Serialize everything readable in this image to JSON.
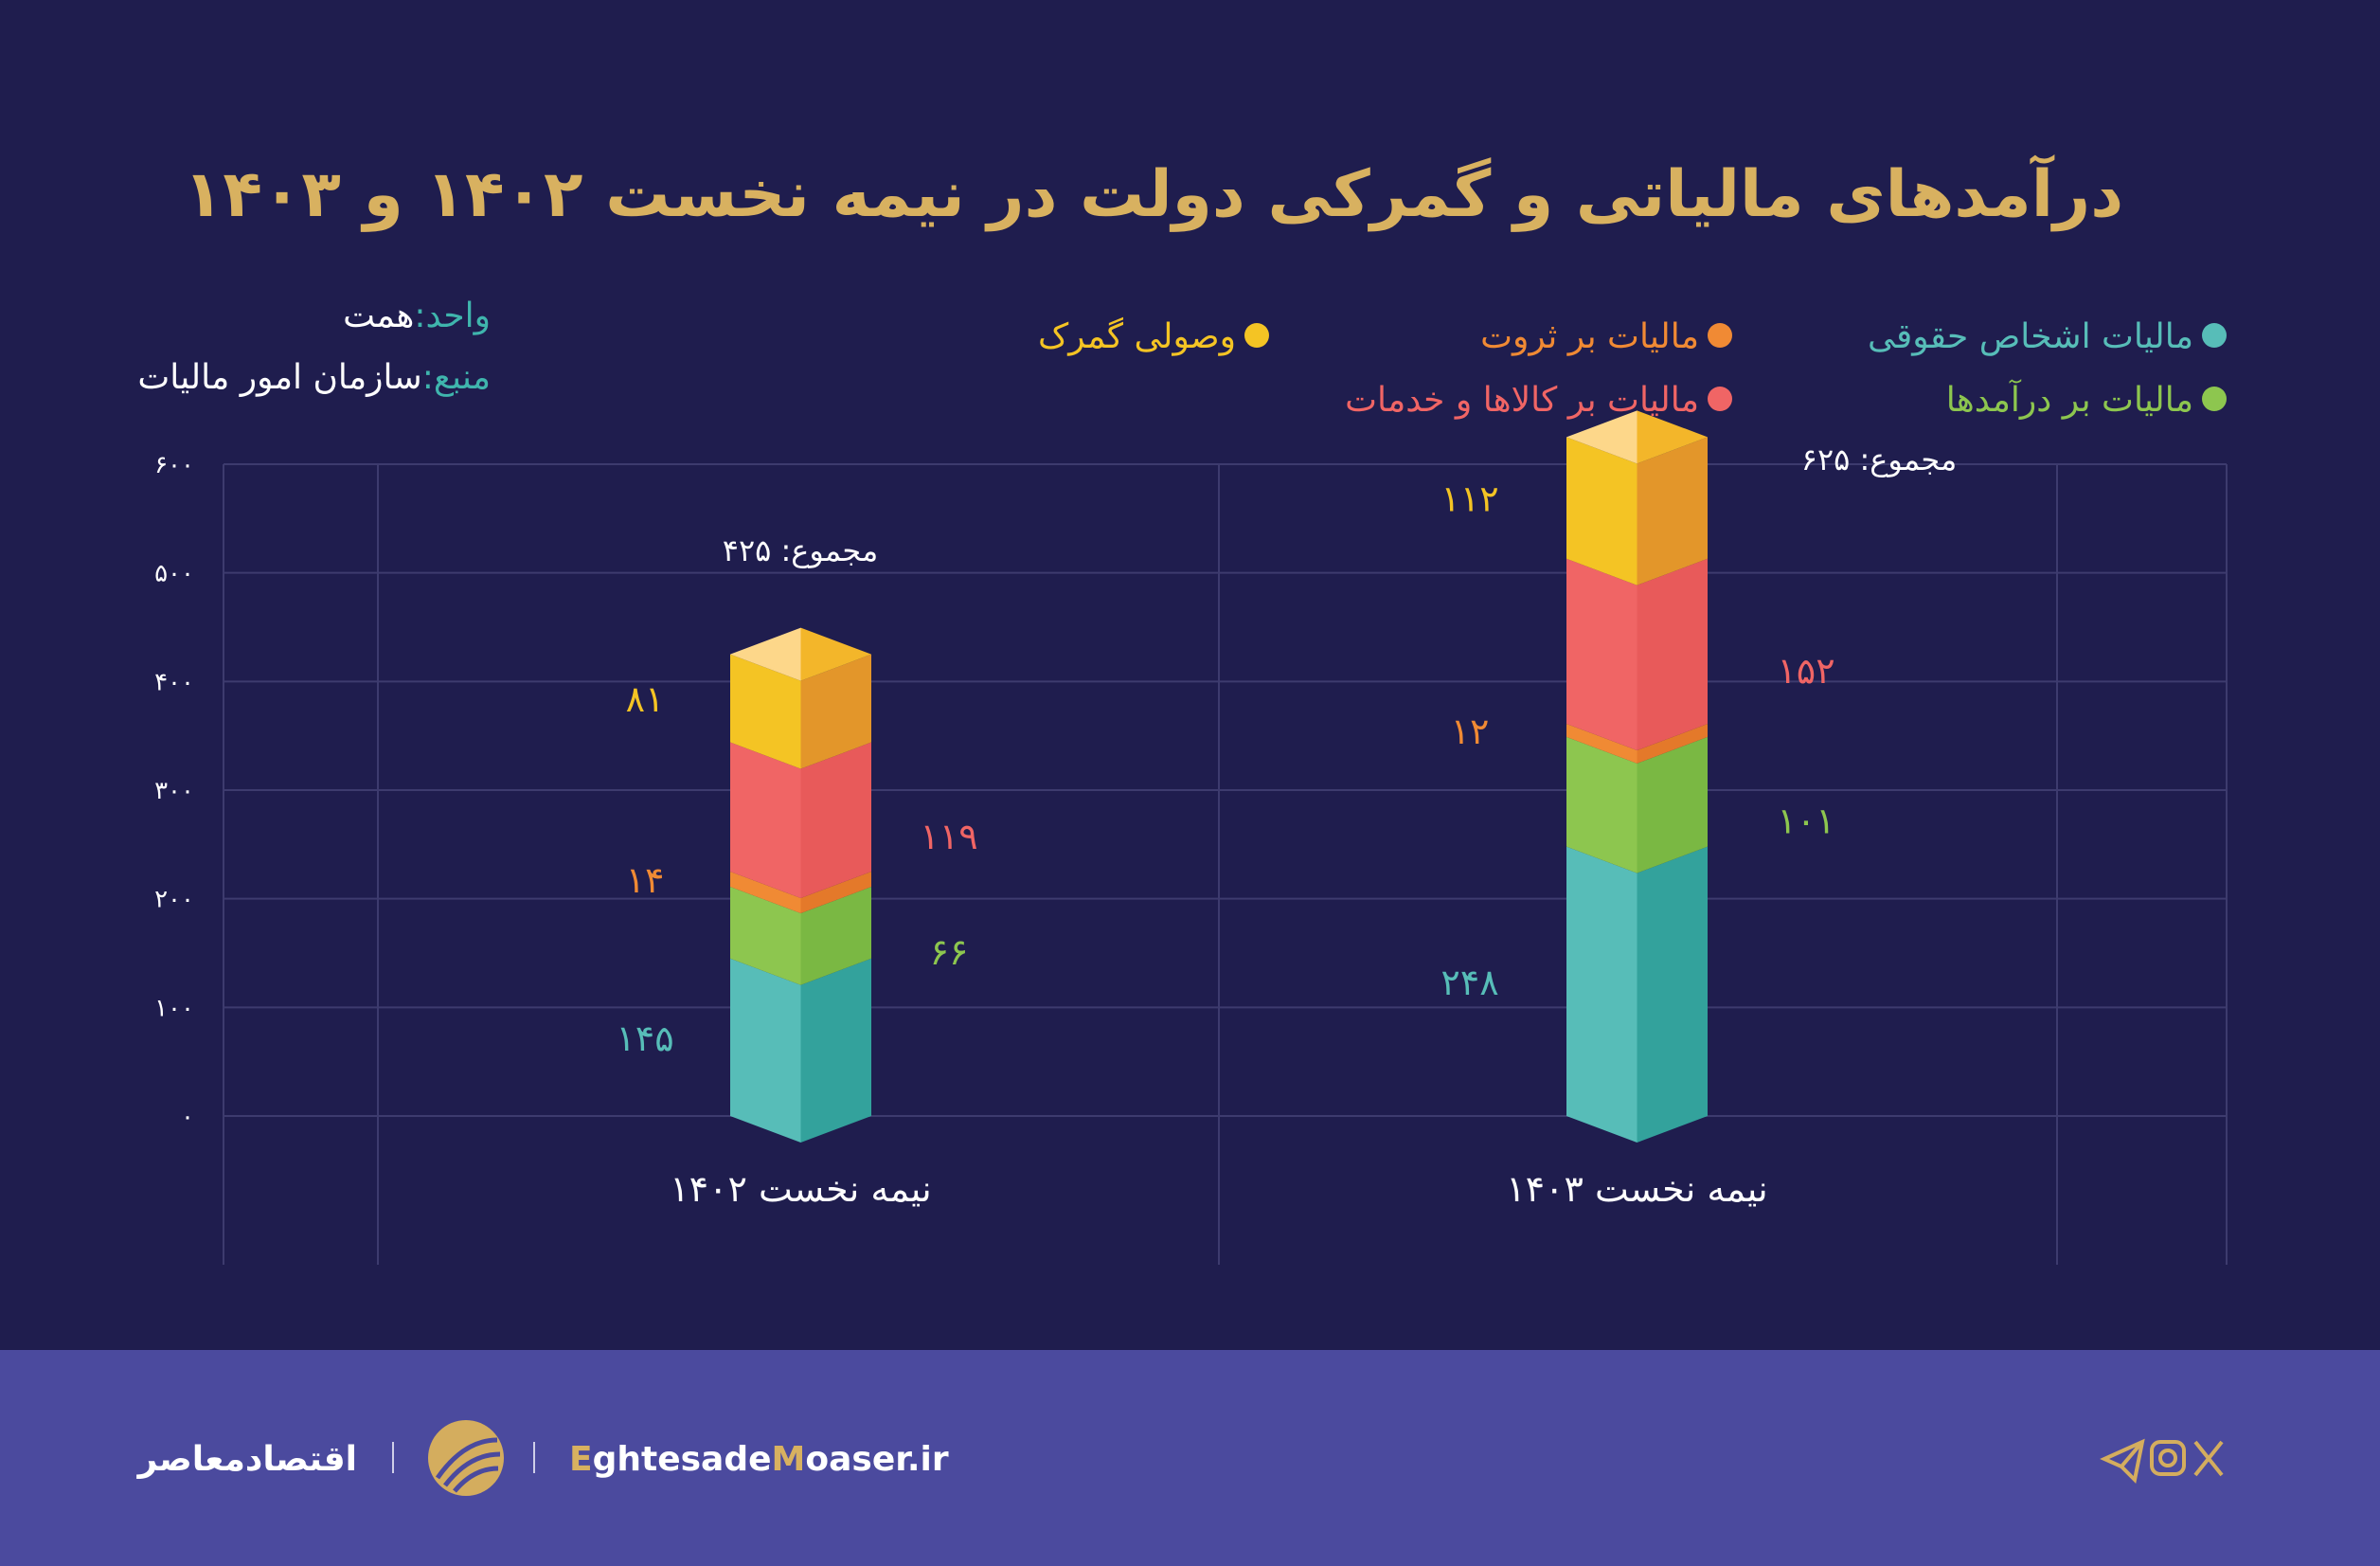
{
  "title": "درآمدهای مالیاتی و گمرکی دولت در نیمه نخست ۱۴۰۲ و ۱۴۰۳",
  "unit": {
    "label": "واحد:",
    "value": "همت"
  },
  "source": {
    "label": "منبع:",
    "value": "سازمان امور مالیات"
  },
  "colors": {
    "background": "#1f1d4e",
    "footer": "#4b4a9e",
    "title": "#d8b160",
    "meta_label": "#3fb5ad",
    "grid": "#3d3b6e"
  },
  "chart_data": {
    "type": "stacked-bar",
    "categories": [
      "نیمه نخست ۱۴۰۲",
      "نیمه نخست ۱۴۰۳"
    ],
    "series": [
      {
        "name": "مالیات اشخاص حقوقی",
        "values": [
          145,
          248
        ],
        "color": "#57bdb8",
        "dark": "#33a29c"
      },
      {
        "name": "مالیات بر درآمدها",
        "values": [
          66,
          101
        ],
        "color": "#8dc64f",
        "dark": "#7ab843"
      },
      {
        "name": "مالیات بر ثروت",
        "values": [
          14,
          12
        ],
        "color": "#f08a34",
        "dark": "#e4792a"
      },
      {
        "name": "مالیات بر کالاها و خدمات",
        "values": [
          119,
          152
        ],
        "color": "#f06565",
        "dark": "#e85a5a"
      },
      {
        "name": "وصولی گمرک",
        "values": [
          81,
          112
        ],
        "color": "#f4c424",
        "dark": "#e3962a"
      }
    ],
    "totals": [
      "مجموع: ۴۲۵",
      "مجموع: ۶۲۵"
    ],
    "ylim": [
      0,
      600
    ],
    "yticks": [
      "۰",
      "۱۰۰",
      "۲۰۰",
      "۳۰۰",
      "۴۰۰",
      "۵۰۰",
      "۶۰۰"
    ],
    "grid": true,
    "legend_position": "top"
  },
  "footer": {
    "brand": "اقتصادمعاصر",
    "url_parts": [
      "E",
      "ghtesade",
      "M",
      "oaser.ir"
    ],
    "social_icons": [
      "telegram-icon",
      "instagram-icon",
      "x-icon"
    ]
  }
}
